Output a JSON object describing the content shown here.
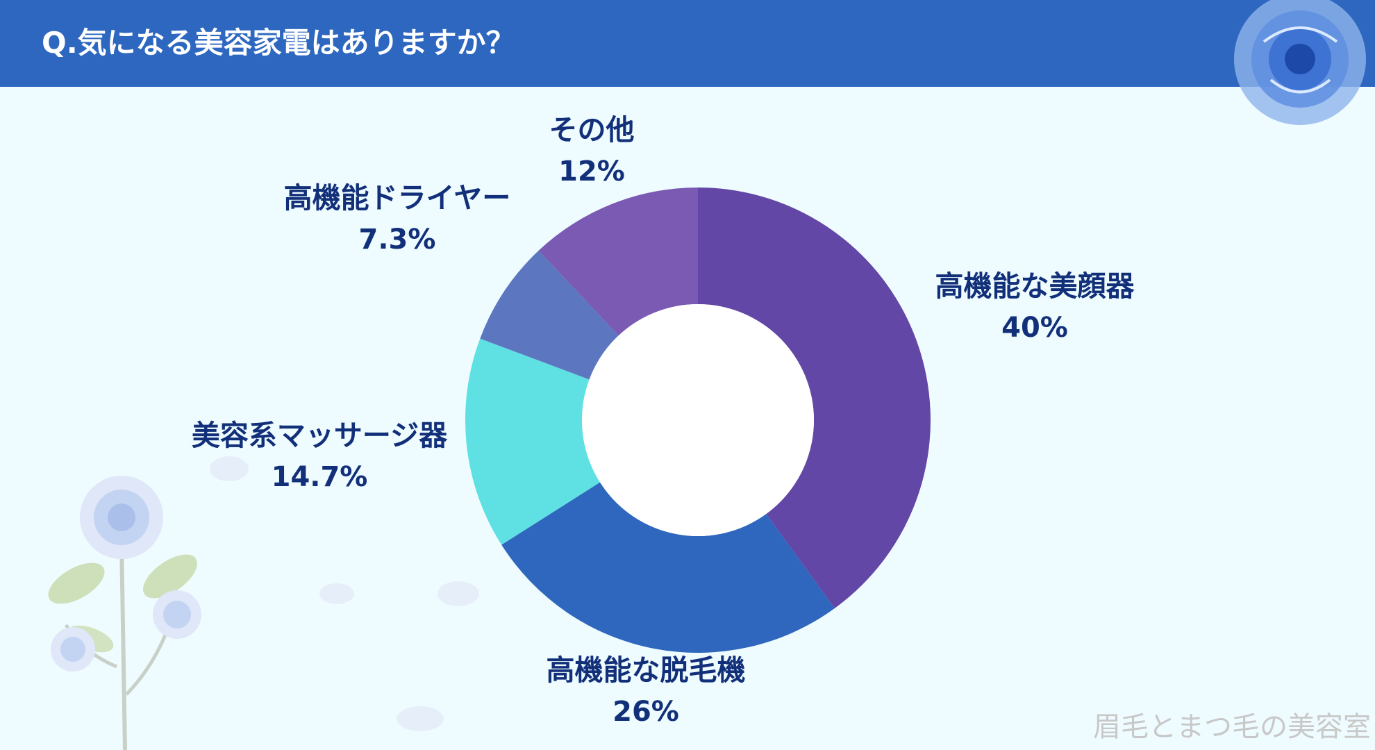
{
  "header": {
    "title": "Q.気になる美容家電はありますか？"
  },
  "watermark": "眉毛とまつ毛の美容室",
  "colors": {
    "header_bg": "#2d67bf",
    "page_bg": "#effcff",
    "label_text": "#12307a"
  },
  "chart_data": {
    "type": "pie",
    "donut": true,
    "title": "Q.気になる美容家電はありますか？",
    "start_angle_deg": 0,
    "direction": "clockwise",
    "slices": [
      {
        "label": "高機能な美顔器",
        "value": 40,
        "value_label": "40%",
        "color": "#6347a6"
      },
      {
        "label": "高機能な脱毛機",
        "value": 26,
        "value_label": "26%",
        "color": "#2e67bd"
      },
      {
        "label": "美容系マッサージ器",
        "value": 14.7,
        "value_label": "14.7%",
        "color": "#5fe0e3"
      },
      {
        "label": "高機能ドライヤー",
        "value": 7.3,
        "value_label": "7.3%",
        "color": "#5c76c0"
      },
      {
        "label": "その他",
        "value": 12,
        "value_label": "12%",
        "color": "#7a5ab3"
      }
    ]
  }
}
